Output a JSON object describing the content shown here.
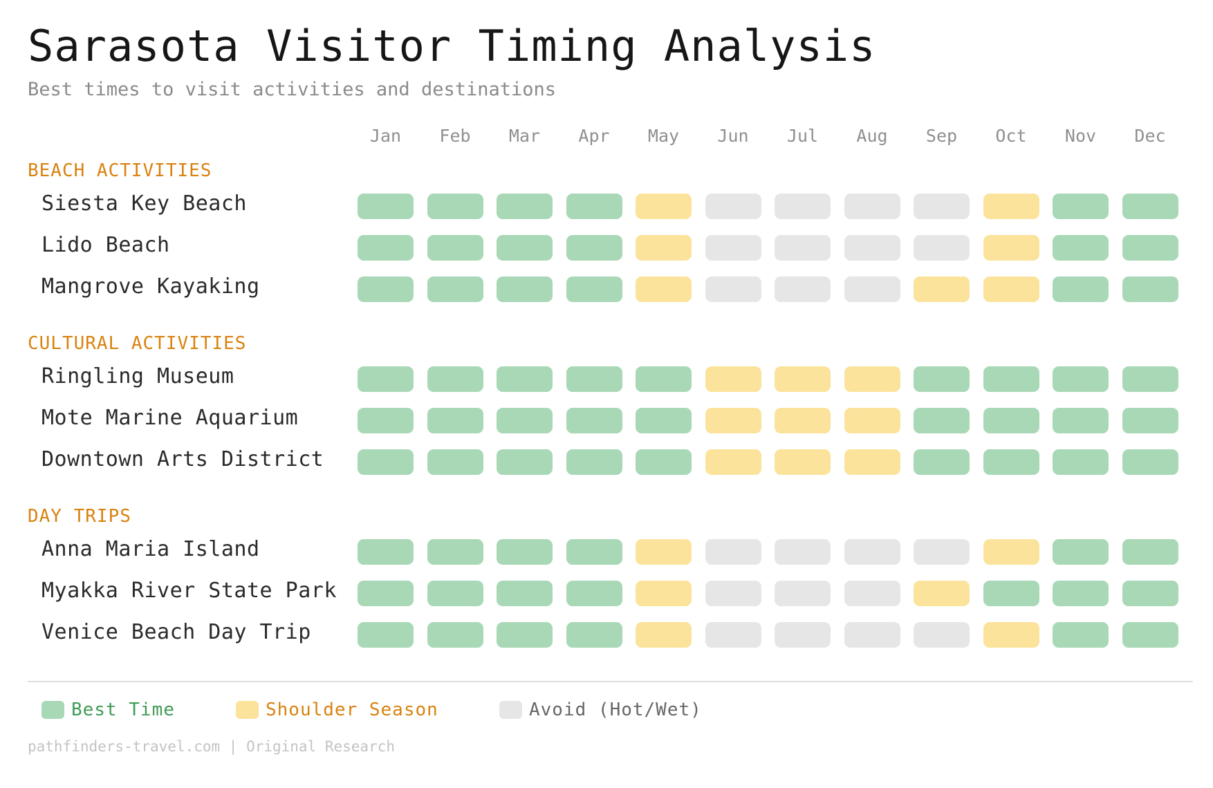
{
  "title": "Sarasota Visitor Timing Analysis",
  "subtitle": "Best times to visit activities and destinations",
  "footer": "pathfinders-travel.com | Original Research",
  "colors": {
    "best": "#a8d8b6",
    "shoulder": "#fbe39c",
    "avoid": "#e6e6e6",
    "section": "#d9820f",
    "legend_best_text": "#3f9b55",
    "legend_shoulder_text": "#d9820f",
    "legend_avoid_text": "#666666"
  },
  "chart_data": {
    "type": "heatmap",
    "months": [
      "Jan",
      "Feb",
      "Mar",
      "Apr",
      "May",
      "Jun",
      "Jul",
      "Aug",
      "Sep",
      "Oct",
      "Nov",
      "Dec"
    ],
    "legend": [
      {
        "key": "best",
        "label": "Best Time"
      },
      {
        "key": "shoulder",
        "label": "Shoulder Season"
      },
      {
        "key": "avoid",
        "label": "Avoid (Hot/Wet)"
      }
    ],
    "sections": [
      {
        "title": "BEACH ACTIVITIES",
        "rows": [
          {
            "label": "Siesta Key Beach",
            "values": [
              "best",
              "best",
              "best",
              "best",
              "shoulder",
              "avoid",
              "avoid",
              "avoid",
              "avoid",
              "shoulder",
              "best",
              "best"
            ]
          },
          {
            "label": "Lido Beach",
            "values": [
              "best",
              "best",
              "best",
              "best",
              "shoulder",
              "avoid",
              "avoid",
              "avoid",
              "avoid",
              "shoulder",
              "best",
              "best"
            ]
          },
          {
            "label": "Mangrove Kayaking",
            "values": [
              "best",
              "best",
              "best",
              "best",
              "shoulder",
              "avoid",
              "avoid",
              "avoid",
              "shoulder",
              "shoulder",
              "best",
              "best"
            ]
          }
        ]
      },
      {
        "title": "CULTURAL ACTIVITIES",
        "rows": [
          {
            "label": "Ringling Museum",
            "values": [
              "best",
              "best",
              "best",
              "best",
              "best",
              "shoulder",
              "shoulder",
              "shoulder",
              "best",
              "best",
              "best",
              "best"
            ]
          },
          {
            "label": "Mote Marine Aquarium",
            "values": [
              "best",
              "best",
              "best",
              "best",
              "best",
              "shoulder",
              "shoulder",
              "shoulder",
              "best",
              "best",
              "best",
              "best"
            ]
          },
          {
            "label": "Downtown Arts District",
            "values": [
              "best",
              "best",
              "best",
              "best",
              "best",
              "shoulder",
              "shoulder",
              "shoulder",
              "best",
              "best",
              "best",
              "best"
            ]
          }
        ]
      },
      {
        "title": "DAY TRIPS",
        "rows": [
          {
            "label": "Anna Maria Island",
            "values": [
              "best",
              "best",
              "best",
              "best",
              "shoulder",
              "avoid",
              "avoid",
              "avoid",
              "avoid",
              "shoulder",
              "best",
              "best"
            ]
          },
          {
            "label": "Myakka River State Park",
            "values": [
              "best",
              "best",
              "best",
              "best",
              "shoulder",
              "avoid",
              "avoid",
              "avoid",
              "shoulder",
              "best",
              "best",
              "best"
            ]
          },
          {
            "label": "Venice Beach Day Trip",
            "values": [
              "best",
              "best",
              "best",
              "best",
              "shoulder",
              "avoid",
              "avoid",
              "avoid",
              "avoid",
              "shoulder",
              "best",
              "best"
            ]
          }
        ]
      }
    ]
  }
}
